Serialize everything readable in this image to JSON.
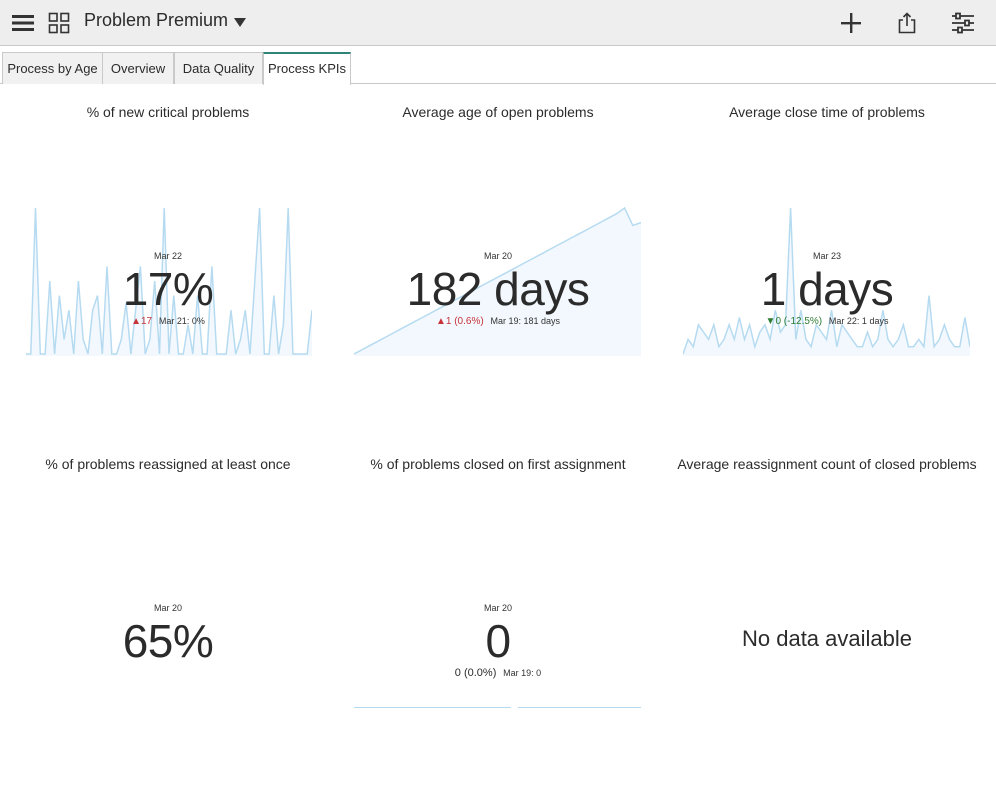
{
  "header": {
    "title": "Problem Premium",
    "icons": [
      "menu-icon",
      "grid-icon",
      "dropdown-caret-icon",
      "plus-icon",
      "share-icon",
      "filter-sliders-icon"
    ]
  },
  "tabs": [
    {
      "label": "Process by Age",
      "active": false
    },
    {
      "label": "Overview",
      "active": false
    },
    {
      "label": "Data Quality",
      "active": false
    },
    {
      "label": "Process KPIs",
      "active": true
    }
  ],
  "colors": {
    "accent": "#2c8578",
    "spark_line": "#b6dbf1",
    "spark_fill": "#f2f8fd",
    "up": "#c8333a",
    "down": "#2e7d32"
  },
  "widgets": [
    {
      "title": "% of new critical problems",
      "date": "Mar 22",
      "value": "17%",
      "delta": "17",
      "delta_dir": "up",
      "prev": "Mar 21: 0%",
      "sparkline": [
        0,
        0,
        1,
        0,
        0,
        0.5,
        0,
        0.4,
        0.1,
        0.3,
        0,
        0.5,
        0.1,
        0,
        0.3,
        0.4,
        0,
        0.6,
        0,
        0,
        0.1,
        0.35,
        0,
        0.3,
        0.6,
        0,
        0.1,
        0.5,
        0,
        1,
        0,
        0.4,
        0,
        0,
        0.2,
        0,
        0.4,
        0,
        0,
        0.6,
        0,
        0,
        0,
        0.3,
        0,
        0.1,
        0.3,
        0,
        0.5,
        1,
        0,
        0,
        0.4,
        0,
        0.2,
        1,
        0,
        0,
        0,
        0,
        0.3
      ]
    },
    {
      "title": "Average age of open problems",
      "date": "Mar 20",
      "value": "182 days",
      "delta": "1 (0.6%)",
      "delta_dir": "up",
      "prev": "Mar 19: 181 days",
      "sparkline": [
        0,
        0.03,
        0.06,
        0.09,
        0.12,
        0.15,
        0.18,
        0.21,
        0.24,
        0.27,
        0.3,
        0.33,
        0.36,
        0.39,
        0.42,
        0.45,
        0.48,
        0.51,
        0.54,
        0.57,
        0.6,
        0.63,
        0.66,
        0.69,
        0.72,
        0.75,
        0.78,
        0.81,
        0.84,
        0.87,
        0.9,
        0.93,
        0.96,
        1,
        0.88,
        0.9
      ]
    },
    {
      "title": "Average close time of problems",
      "date": "Mar 23",
      "value": "1 days",
      "delta": "0 (-12.5%)",
      "delta_dir": "down",
      "prev": "Mar 22: 1 days",
      "sparkline": [
        0,
        0.1,
        0.05,
        0.2,
        0.15,
        0.1,
        0.2,
        0.05,
        0.1,
        0.2,
        0.1,
        0.25,
        0.1,
        0.2,
        0.05,
        0.15,
        0.2,
        0.1,
        0.3,
        0.15,
        0.2,
        1,
        0.1,
        0.3,
        0.1,
        0.05,
        0.2,
        0.15,
        0.1,
        0.3,
        0.05,
        0.2,
        0.15,
        0.1,
        0.05,
        0.05,
        0.15,
        0.05,
        0.1,
        0.3,
        0.1,
        0.05,
        0.1,
        0.2,
        0.05,
        0.05,
        0.1,
        0.05,
        0.4,
        0.05,
        0.1,
        0.2,
        0.1,
        0.05,
        0.05,
        0.25,
        0.05
      ]
    },
    {
      "title": "% of problems reassigned at least once",
      "date": "Mar 20",
      "value": "65%"
    },
    {
      "title": "% of problems closed on first assignment",
      "date": "Mar 20",
      "value": "0",
      "delta": "0 (0.0%)",
      "delta_dir": "neutral",
      "prev": "Mar 19: 0"
    },
    {
      "title": "Average reassignment count of closed problems",
      "message": "No data available"
    }
  ]
}
